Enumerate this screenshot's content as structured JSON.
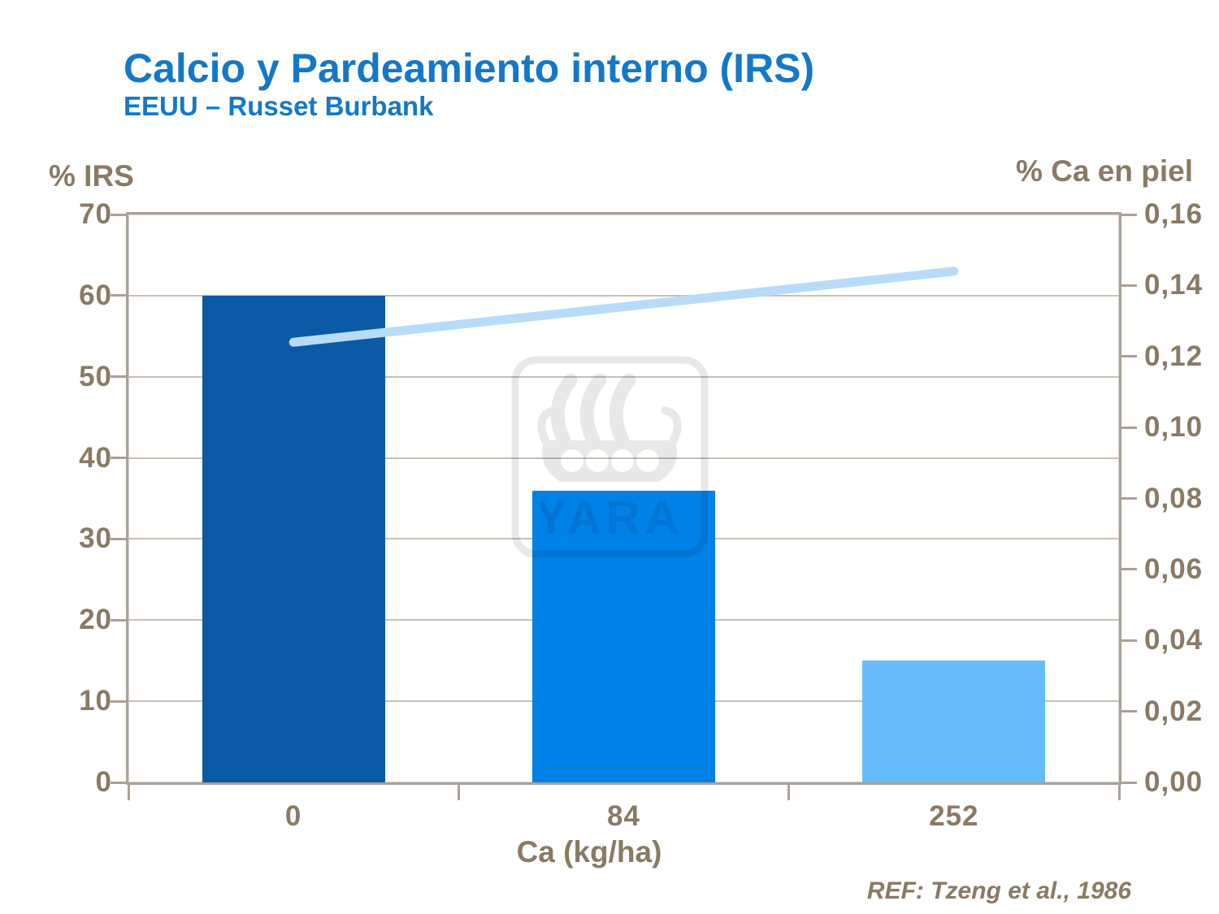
{
  "header": {
    "title": "Calcio y Pardeamiento interno (IRS)",
    "subtitle": "EEUU – Russet Burbank"
  },
  "footer": {
    "reference": "REF: Tzeng et al., 1986"
  },
  "watermark": {
    "name": "yara-viking-ship-logo",
    "text": "YARA"
  },
  "chart_data": {
    "type": "bar",
    "title": "Calcio y Pardeamiento interno (IRS)",
    "subtitle": "EEUU – Russet Burbank",
    "categories": [
      "0",
      "84",
      "252"
    ],
    "xlabel": "Ca (kg/ha)",
    "grid": "horizontal",
    "legend": "none",
    "left_axis": {
      "label": "% IRS",
      "min": 0,
      "max": 70,
      "step": 10,
      "tick_labels": [
        "70",
        "60",
        "50",
        "40",
        "30",
        "20",
        "10",
        "0"
      ]
    },
    "right_axis": {
      "label": "% Ca en piel",
      "min": 0,
      "max": 0.16,
      "step": 0.02,
      "tick_labels": [
        "0,16",
        "0,14",
        "0,12",
        "0,10",
        "0,08",
        "0,06",
        "0,04",
        "0,02",
        "0,00"
      ]
    },
    "series": [
      {
        "name": "% IRS",
        "type": "bar",
        "axis": "left",
        "values": [
          60,
          36,
          15
        ],
        "bar_colors": [
          "#0a5aa5",
          "#0081e8",
          "#66bcfa"
        ]
      },
      {
        "name": "% Ca en piel",
        "type": "line",
        "axis": "right",
        "values": [
          0.124,
          0.134,
          0.144
        ],
        "color": "#b8dbfa"
      }
    ],
    "colors": {
      "title_blue": "#1478c8",
      "axis_text_brown": "#8a7a64",
      "frame": "#aaa197",
      "gridline": "#c9bfb4"
    }
  }
}
